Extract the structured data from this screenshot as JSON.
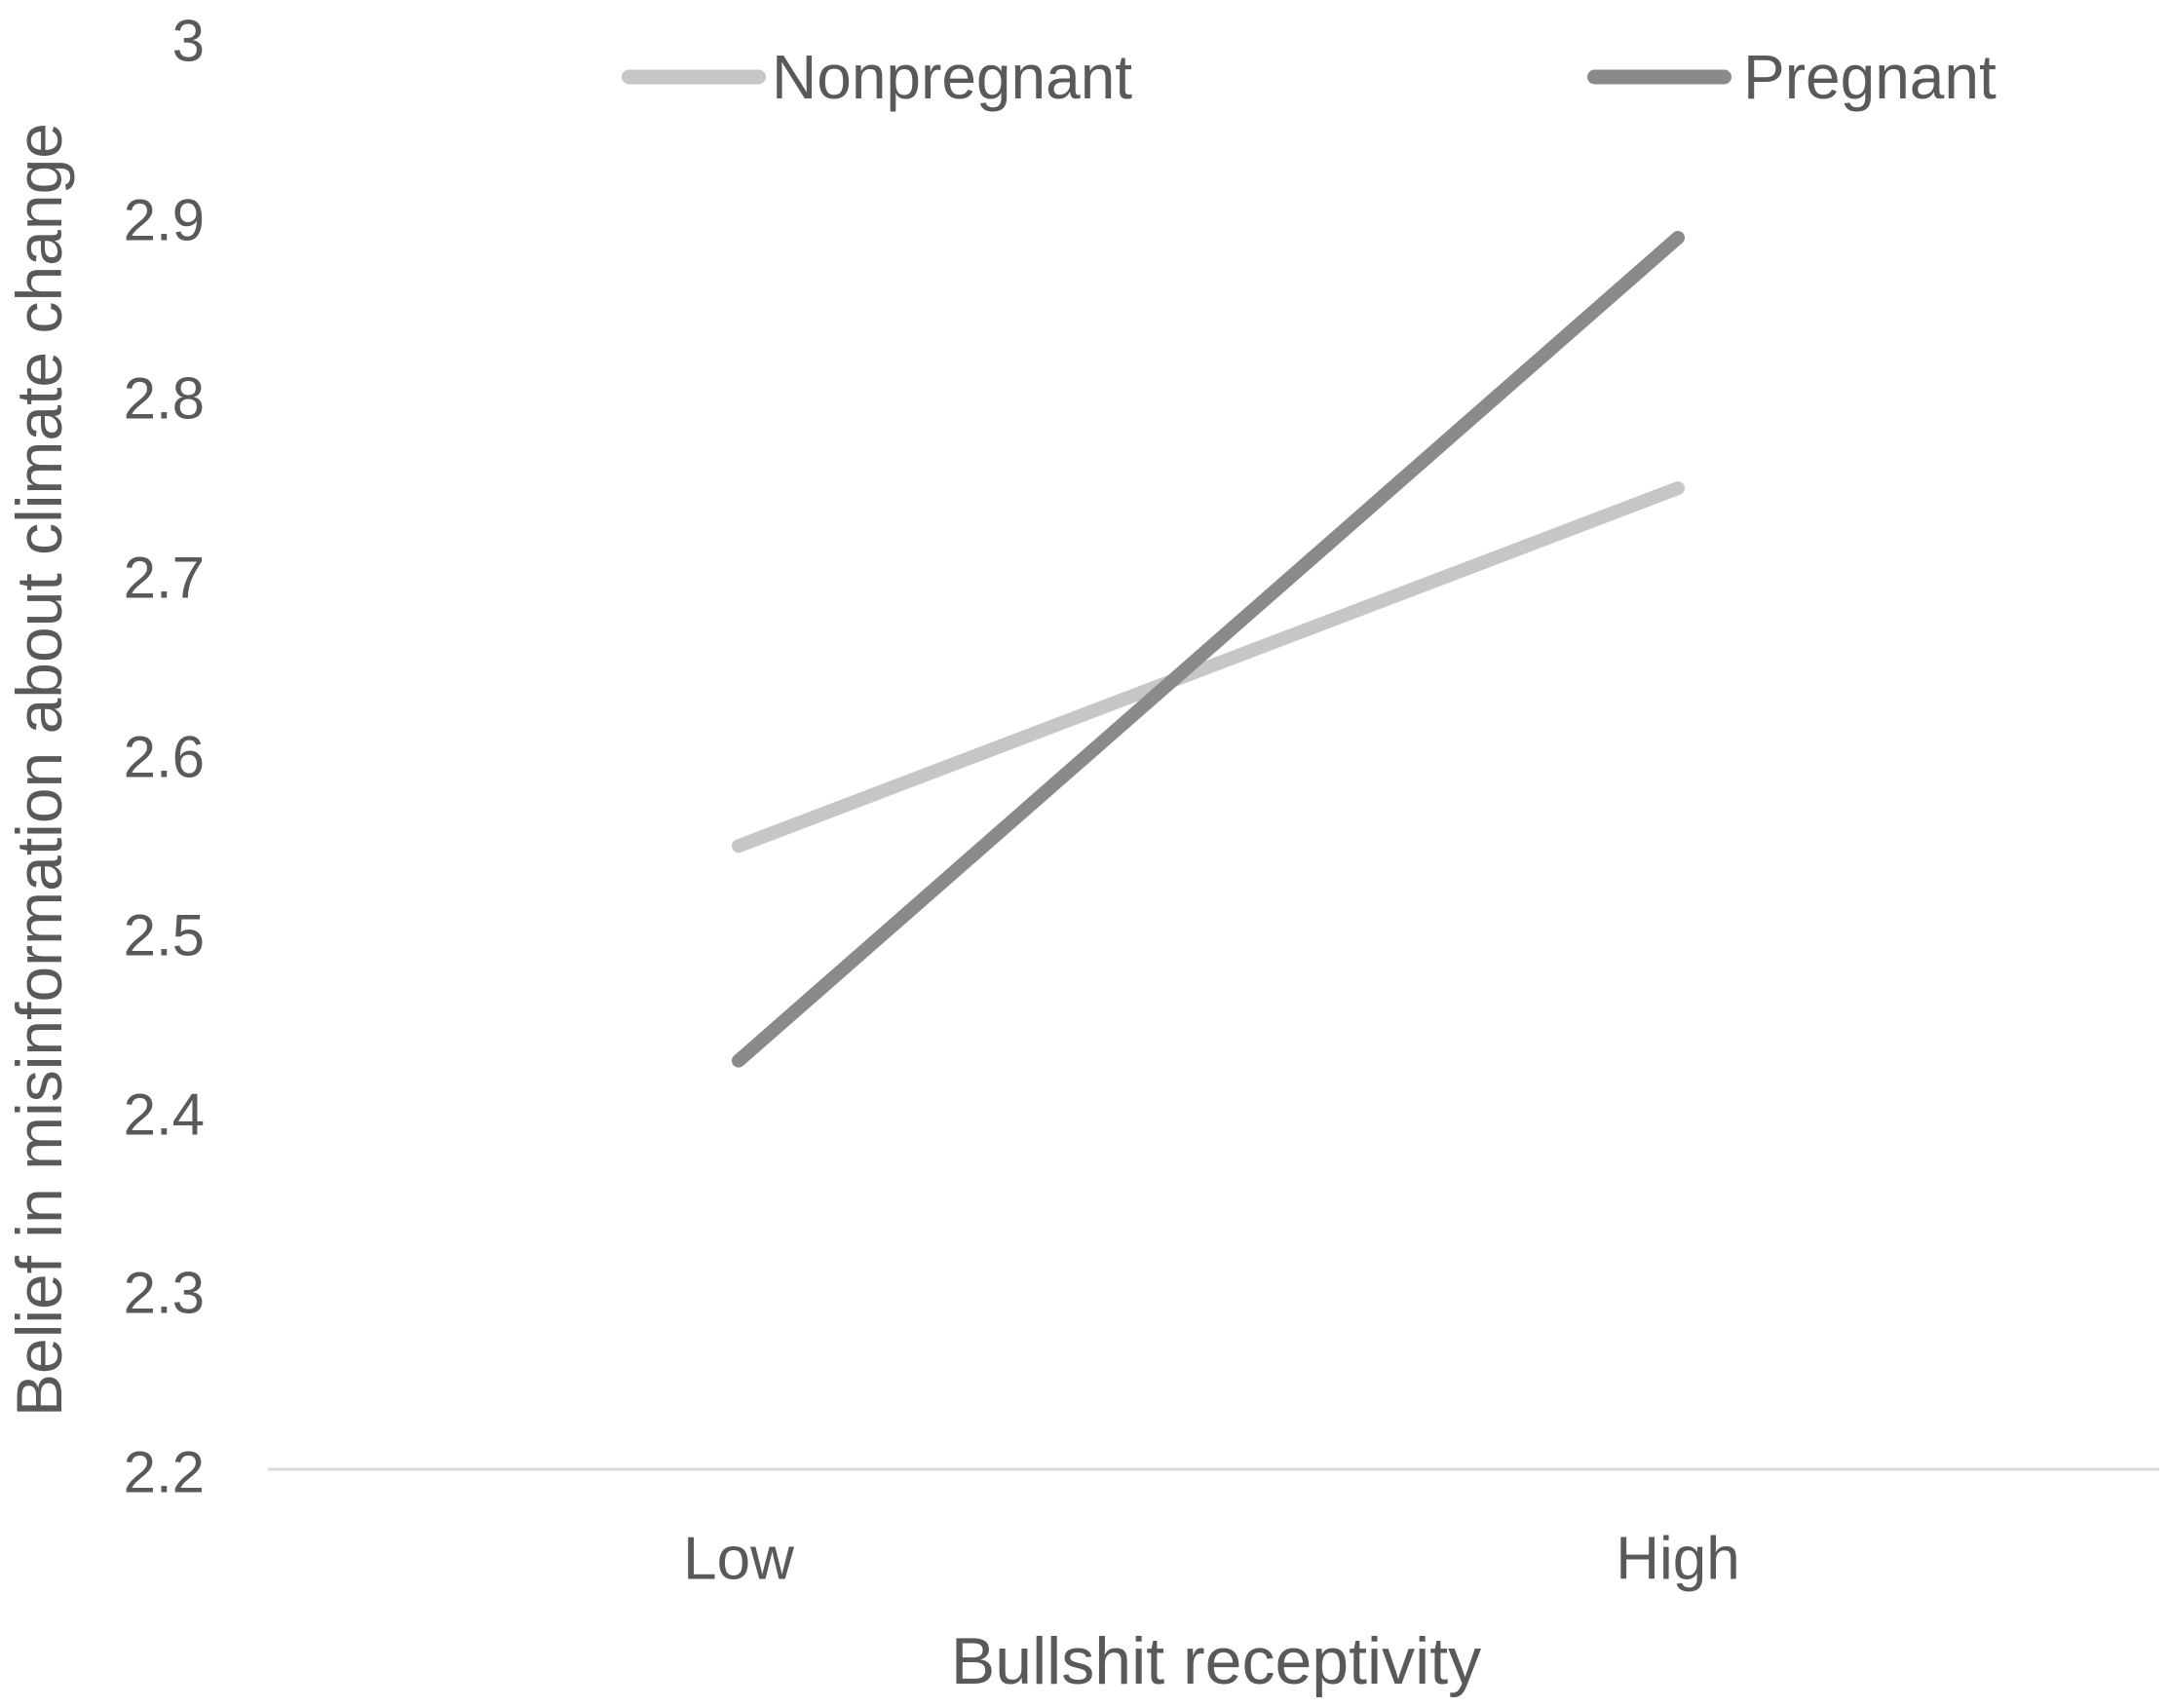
{
  "chart_data": {
    "type": "line",
    "categories": [
      "Low",
      "High"
    ],
    "series": [
      {
        "name": "Nonpregnant",
        "values": [
          2.55,
          2.75
        ],
        "color": "#c6c6c6"
      },
      {
        "name": "Pregnant",
        "values": [
          2.43,
          2.89
        ],
        "color": "#8a8a8a"
      }
    ],
    "title": "",
    "xlabel": "Bullshit receptivity",
    "ylabel": "Belief in misinformation about climate change",
    "ylim": [
      2.2,
      3.0
    ],
    "yticks": [
      "3",
      "2.9",
      "2.8",
      "2.7",
      "2.6",
      "2.5",
      "2.4",
      "2.3",
      "2.2"
    ],
    "ytick_values": [
      3.0,
      2.9,
      2.8,
      2.7,
      2.6,
      2.5,
      2.4,
      2.3,
      2.2
    ],
    "grid": false,
    "legend_position": "top"
  },
  "colors": {
    "text": "#595959",
    "axis_line": "#d9d9d9",
    "background": "#ffffff"
  }
}
